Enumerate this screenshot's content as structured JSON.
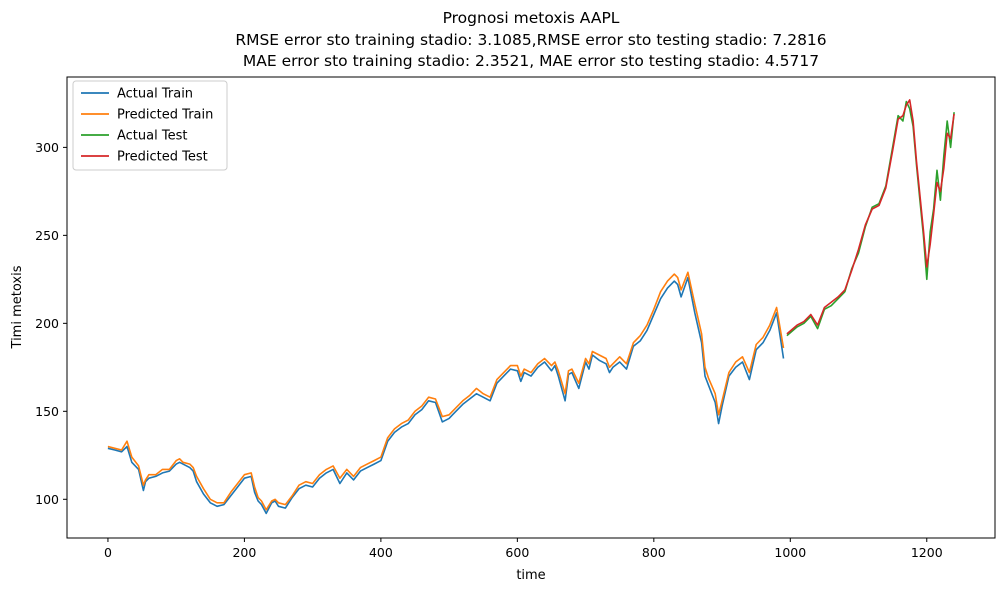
{
  "chart_data": {
    "type": "line",
    "title_lines": [
      "Prognosi metoxis AAPL",
      "RMSE error sto training stadio: 3.1085,RMSE error sto testing stadio: 7.2816",
      "MAE error sto training stadio: 2.3521, MAE error sto testing stadio: 4.5717"
    ],
    "xlabel": "time",
    "ylabel": "Timi metoxis",
    "xlim": [
      -60,
      1300
    ],
    "ylim": [
      78,
      340
    ],
    "xticks": [
      0,
      200,
      400,
      600,
      800,
      1000,
      1200
    ],
    "yticks": [
      100,
      150,
      200,
      250,
      300
    ],
    "legend_position": "upper-left",
    "grid": false,
    "series": [
      {
        "name": "Actual Train",
        "color": "#1f77b4",
        "x": [
          0,
          10,
          20,
          28,
          35,
          45,
          52,
          55,
          60,
          70,
          80,
          90,
          100,
          105,
          110,
          120,
          125,
          130,
          140,
          150,
          160,
          170,
          180,
          190,
          200,
          210,
          215,
          220,
          225,
          232,
          240,
          245,
          250,
          260,
          270,
          280,
          290,
          300,
          310,
          320,
          330,
          340,
          350,
          360,
          370,
          380,
          390,
          400,
          410,
          420,
          430,
          440,
          450,
          460,
          470,
          480,
          490,
          500,
          505,
          510,
          520,
          530,
          540,
          550,
          560,
          570,
          580,
          590,
          600,
          605,
          610,
          620,
          630,
          640,
          650,
          655,
          660,
          670,
          675,
          680,
          690,
          700,
          705,
          710,
          720,
          730,
          735,
          740,
          750,
          760,
          770,
          780,
          790,
          800,
          810,
          820,
          830,
          835,
          840,
          850,
          860,
          870,
          875,
          880,
          890,
          895,
          900,
          910,
          920,
          930,
          940,
          950,
          960,
          970,
          980,
          990
        ],
        "y": [
          129,
          128,
          127,
          130,
          121,
          117,
          105,
          110,
          112,
          113,
          115,
          116,
          120,
          121,
          120,
          118,
          116,
          110,
          103,
          98,
          96,
          97,
          102,
          107,
          112,
          113,
          104,
          99,
          97,
          92,
          98,
          99,
          96,
          95,
          101,
          106,
          108,
          107,
          112,
          115,
          117,
          109,
          115,
          111,
          116,
          118,
          120,
          122,
          133,
          138,
          141,
          143,
          148,
          151,
          156,
          155,
          144,
          146,
          148,
          150,
          154,
          157,
          160,
          158,
          156,
          166,
          170,
          174,
          173,
          167,
          172,
          170,
          175,
          178,
          173,
          176,
          170,
          156,
          171,
          172,
          163,
          178,
          174,
          182,
          179,
          177,
          172,
          175,
          178,
          174,
          187,
          190,
          196,
          205,
          214,
          220,
          224,
          222,
          215,
          226,
          206,
          189,
          170,
          165,
          155,
          143,
          153,
          170,
          175,
          178,
          168,
          185,
          189,
          196,
          206,
          180
        ]
      },
      {
        "name": "Predicted Train",
        "color": "#ff7f0e",
        "x": [
          0,
          10,
          20,
          28,
          35,
          45,
          52,
          55,
          60,
          70,
          80,
          90,
          100,
          105,
          110,
          120,
          125,
          130,
          140,
          150,
          160,
          170,
          180,
          190,
          200,
          210,
          215,
          220,
          225,
          232,
          240,
          245,
          250,
          260,
          270,
          280,
          290,
          300,
          310,
          320,
          330,
          340,
          350,
          360,
          370,
          380,
          390,
          400,
          410,
          420,
          430,
          440,
          450,
          460,
          470,
          480,
          490,
          500,
          505,
          510,
          520,
          530,
          540,
          550,
          560,
          570,
          580,
          590,
          600,
          605,
          610,
          620,
          630,
          640,
          650,
          655,
          660,
          670,
          675,
          680,
          690,
          700,
          705,
          710,
          720,
          730,
          735,
          740,
          750,
          760,
          770,
          780,
          790,
          800,
          810,
          820,
          830,
          835,
          840,
          850,
          860,
          870,
          875,
          880,
          890,
          895,
          900,
          910,
          920,
          930,
          940,
          950,
          960,
          970,
          980,
          990
        ],
        "y": [
          130,
          129,
          128,
          133,
          124,
          119,
          108,
          111,
          114,
          114,
          117,
          117,
          122,
          123,
          121,
          120,
          118,
          113,
          106,
          100,
          98,
          98,
          104,
          109,
          114,
          115,
          107,
          101,
          99,
          94,
          99,
          100,
          98,
          97,
          102,
          108,
          110,
          109,
          114,
          117,
          119,
          112,
          117,
          113,
          118,
          120,
          122,
          124,
          135,
          140,
          143,
          145,
          150,
          153,
          158,
          157,
          147,
          148,
          150,
          152,
          156,
          159,
          163,
          160,
          158,
          168,
          172,
          176,
          176,
          170,
          174,
          172,
          177,
          180,
          176,
          178,
          173,
          160,
          173,
          174,
          166,
          180,
          177,
          184,
          182,
          180,
          175,
          177,
          181,
          177,
          189,
          193,
          199,
          208,
          218,
          224,
          228,
          226,
          219,
          229,
          211,
          194,
          175,
          169,
          160,
          148,
          156,
          172,
          178,
          181,
          172,
          188,
          192,
          199,
          209,
          186
        ]
      },
      {
        "name": "Actual Test",
        "color": "#2ca02c",
        "x": [
          995,
          1010,
          1020,
          1030,
          1040,
          1050,
          1060,
          1070,
          1080,
          1090,
          1100,
          1110,
          1120,
          1130,
          1140,
          1150,
          1158,
          1165,
          1170,
          1175,
          1180,
          1185,
          1190,
          1195,
          1200,
          1205,
          1210,
          1215,
          1220,
          1225,
          1230,
          1235,
          1240
        ],
        "y": [
          193,
          198,
          200,
          204,
          197,
          208,
          210,
          214,
          218,
          231,
          240,
          255,
          266,
          268,
          278,
          300,
          318,
          315,
          326,
          322,
          312,
          290,
          270,
          250,
          225,
          252,
          265,
          287,
          270,
          295,
          315,
          300,
          320
        ]
      },
      {
        "name": "Predicted Test",
        "color": "#d62728",
        "x": [
          995,
          1010,
          1020,
          1030,
          1040,
          1050,
          1060,
          1070,
          1080,
          1090,
          1100,
          1110,
          1120,
          1130,
          1140,
          1150,
          1158,
          1165,
          1170,
          1175,
          1180,
          1185,
          1190,
          1195,
          1200,
          1205,
          1210,
          1215,
          1220,
          1225,
          1230,
          1235,
          1240
        ],
        "y": [
          194,
          199,
          201,
          205,
          199,
          209,
          212,
          215,
          219,
          230,
          242,
          256,
          265,
          267,
          277,
          298,
          316,
          318,
          324,
          327,
          315,
          292,
          273,
          253,
          232,
          245,
          262,
          280,
          275,
          288,
          308,
          305,
          319
        ]
      }
    ]
  }
}
